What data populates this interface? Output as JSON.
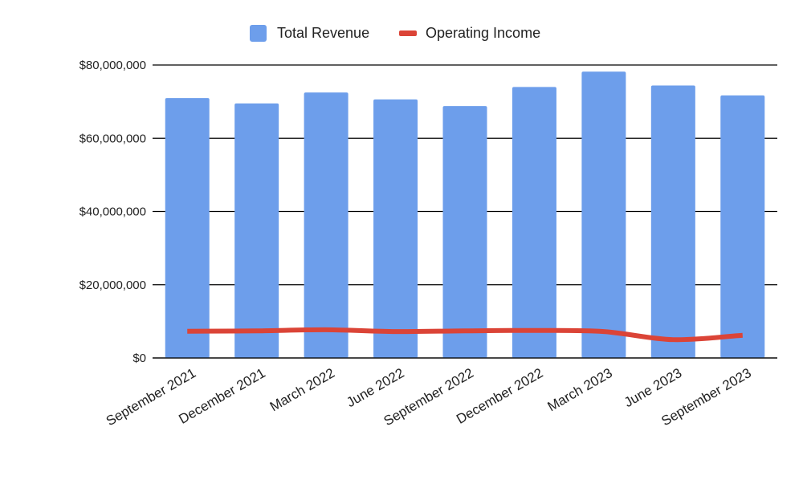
{
  "chart_data": {
    "type": "bar",
    "categories": [
      "September 2021",
      "December 2021",
      "March 2022",
      "June 2022",
      "September 2022",
      "December 2022",
      "March 2023",
      "June 2023",
      "September 2023"
    ],
    "series": [
      {
        "name": "Total Revenue",
        "kind": "bar",
        "color": "#6d9eeb",
        "values": [
          71000000,
          69500000,
          72500000,
          70600000,
          68800000,
          74000000,
          78200000,
          74400000,
          71700000
        ]
      },
      {
        "name": "Operating Income",
        "kind": "line",
        "color": "#db4437",
        "values": [
          7300000,
          7400000,
          7700000,
          7200000,
          7400000,
          7500000,
          7200000,
          5000000,
          6200000
        ]
      }
    ],
    "ylim": [
      0,
      80000000
    ],
    "yticks": [
      0,
      20000000,
      40000000,
      60000000,
      80000000
    ],
    "ytick_labels": [
      "$0",
      "$20,000,000",
      "$40,000,000",
      "$60,000,000",
      "$80,000,000"
    ],
    "grid": true,
    "legend_position": "top"
  }
}
